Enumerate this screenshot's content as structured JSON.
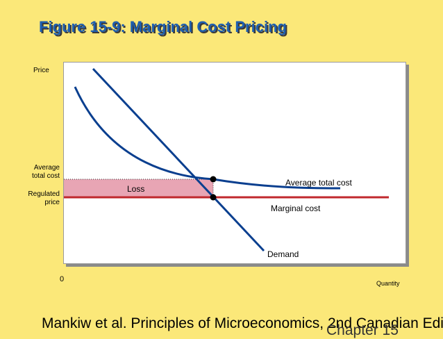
{
  "title": "Figure 15-9: Marginal Cost Pricing",
  "axes": {
    "y_label": "Price",
    "x_label": "Quantity",
    "origin": "0",
    "y_tick_average": "Average total cost",
    "y_tick_regulated": "Regulated price"
  },
  "curves": {
    "average_total_cost": "Average total cost",
    "marginal_cost": "Marginal cost",
    "demand": "Demand"
  },
  "region": {
    "loss": "Loss"
  },
  "colors": {
    "background": "#fbe879",
    "title": "#1e5fb0",
    "curve": "#0a3f8f",
    "marginal_cost": "#c0282d",
    "loss_fill": "#e8a5b4"
  },
  "footer": {
    "citation": "Mankiw et al. Principles of Microeconomics, 2nd Canadian Edi",
    "overlap_text": "Chapter 15"
  }
}
